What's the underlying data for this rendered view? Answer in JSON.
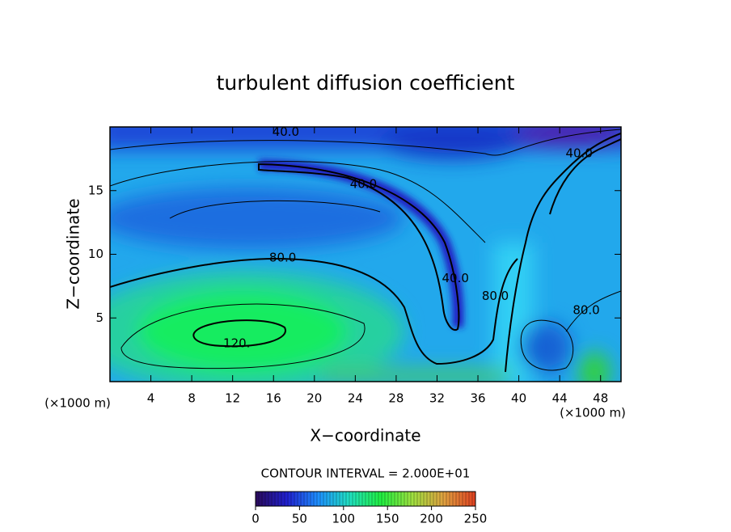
{
  "chart_data": {
    "type": "contour",
    "title": "turbulent diffusion coefficient",
    "x_label": "X−coordinate",
    "y_label": "Z−coordinate",
    "x_unit": "(×1000 m)",
    "xlim": [
      0,
      50
    ],
    "xticks": [
      4,
      8,
      12,
      16,
      20,
      24,
      28,
      32,
      36,
      40,
      44,
      48
    ],
    "ylim": [
      0,
      20
    ],
    "yticks": [
      5,
      10,
      15
    ],
    "contour_interval": "CONTOUR INTERVAL = 2.000E+01",
    "contour_labels": [
      {
        "text": "40.0",
        "x": 17.2,
        "y": 19.6
      },
      {
        "text": "40.0",
        "x": 24.8,
        "y": 15.5
      },
      {
        "text": "40.0",
        "x": 33.8,
        "y": 8.1
      },
      {
        "text": "40.0",
        "x": 45.9,
        "y": 17.9
      },
      {
        "text": "80.0",
        "x": 16.9,
        "y": 9.7
      },
      {
        "text": "80.0",
        "x": 37.7,
        "y": 6.7
      },
      {
        "text": "80.0",
        "x": 46.6,
        "y": 5.6
      },
      {
        "text": "120.",
        "x": 12.4,
        "y": 3.0
      }
    ],
    "colorbar": {
      "lim": [
        0,
        250
      ],
      "ticks": [
        0,
        50,
        100,
        150,
        200,
        250
      ],
      "colors": [
        "#2a0a5a",
        "#2020d0",
        "#1e90ff",
        "#20e0c0",
        "#20f040",
        "#a0e040",
        "#e0a040",
        "#e04020"
      ]
    }
  }
}
